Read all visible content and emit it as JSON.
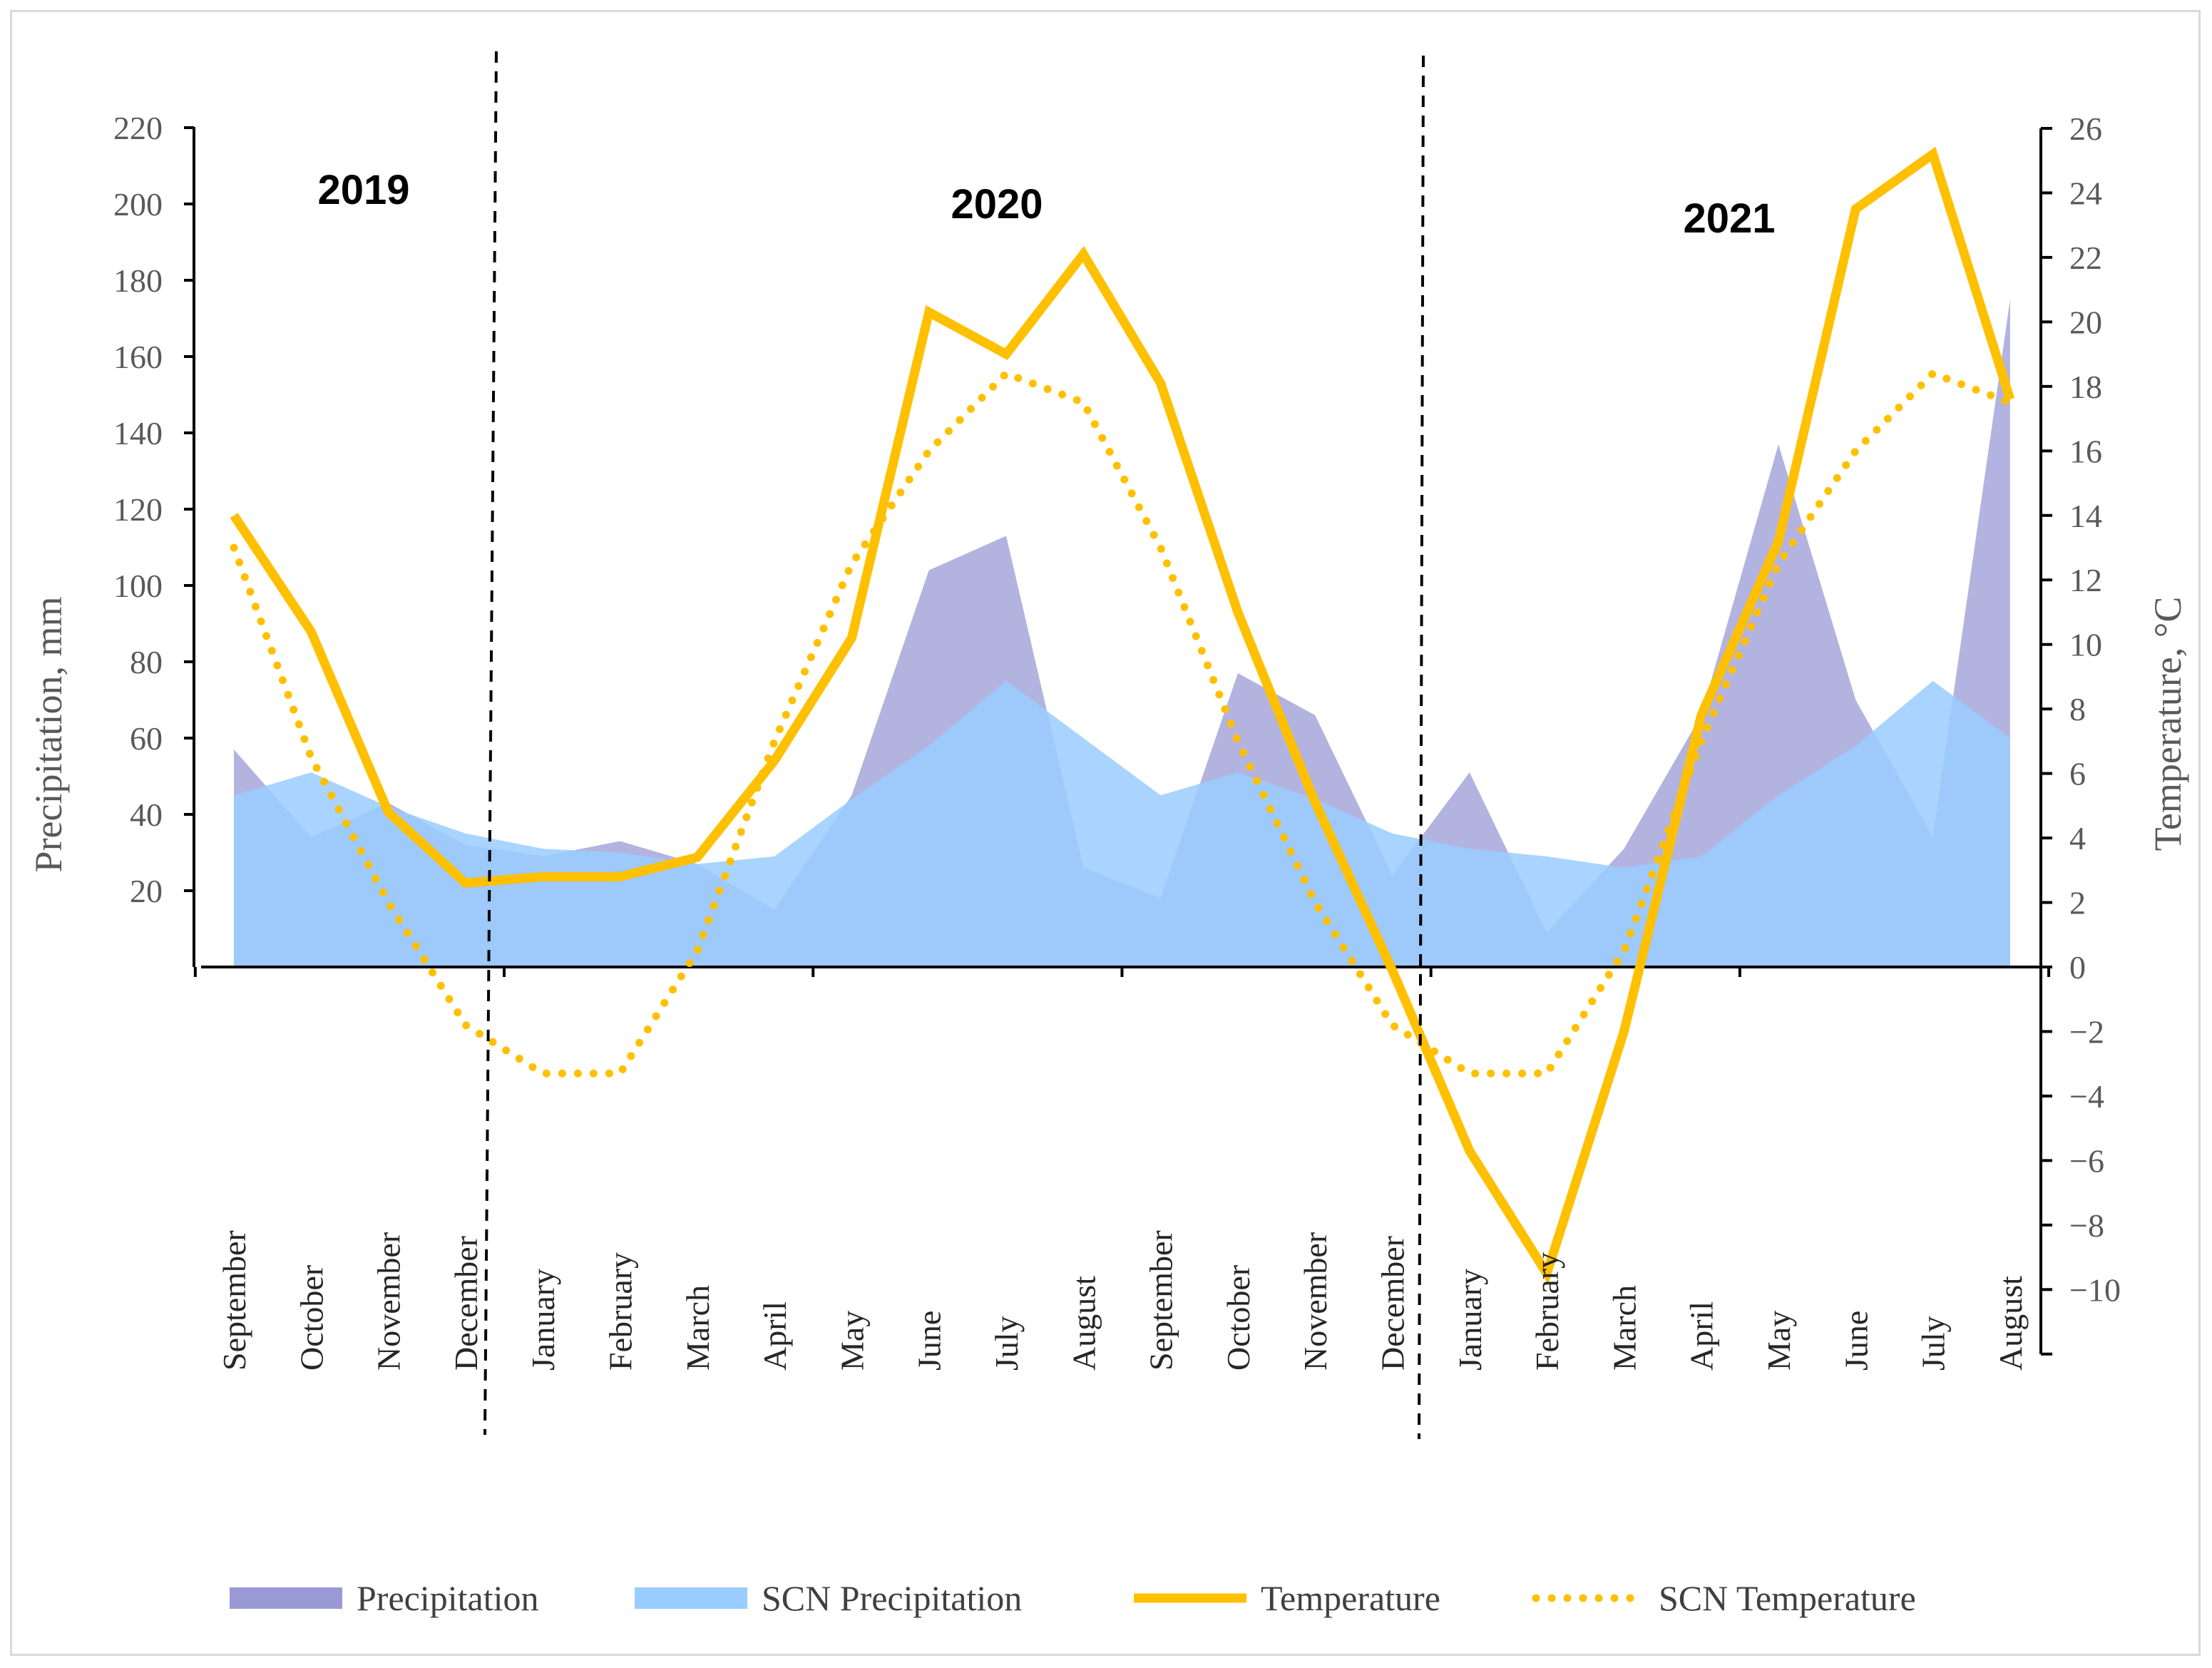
{
  "chart_data": {
    "type": "area+line",
    "title": "",
    "categories": [
      "September",
      "October",
      "November",
      "December",
      "January",
      "February",
      "March",
      "April",
      "May",
      "June",
      "July",
      "August",
      "September",
      "October",
      "November",
      "December",
      "January",
      "February",
      "March",
      "April",
      "May",
      "June",
      "July",
      "August"
    ],
    "years": [
      "2019",
      "2020",
      "2021"
    ],
    "y_left": {
      "label": "Precipitation, mm",
      "ticks": [
        20,
        40,
        60,
        80,
        100,
        120,
        140,
        160,
        180,
        200,
        220
      ],
      "range": [
        0,
        220
      ]
    },
    "y_right": {
      "label": "Temperature, °C",
      "ticks": [
        -10,
        -8,
        -6,
        -4,
        -2,
        0,
        2,
        4,
        6,
        8,
        10,
        12,
        14,
        16,
        18,
        20,
        22,
        24,
        26
      ],
      "range": [
        -12,
        26
      ]
    },
    "series": [
      {
        "name": "Precipitation",
        "type": "area",
        "axis": "left",
        "color": "#9999d6",
        "values": [
          57,
          34,
          43,
          32,
          29,
          33,
          27,
          15,
          45,
          104,
          113,
          26,
          18,
          77,
          66,
          24,
          51,
          9,
          31,
          66,
          137,
          70,
          34,
          175
        ]
      },
      {
        "name": "SCN Precipitation",
        "type": "area",
        "axis": "left",
        "color": "#99ccff",
        "values": [
          45,
          51,
          42,
          35,
          31,
          30,
          27,
          29,
          44,
          58,
          75,
          60,
          45,
          51,
          44,
          35,
          31,
          29,
          26,
          29,
          45,
          58,
          75,
          60
        ]
      },
      {
        "name": "Temperature",
        "type": "line",
        "axis": "right",
        "color": "#ffc000",
        "values": [
          14,
          10.4,
          4.8,
          2.6,
          2.8,
          2.8,
          3.4,
          6.4,
          10.2,
          20.3,
          19.0,
          22.1,
          18.1,
          11.0,
          5.1,
          -0.1,
          -5.7,
          -9.5,
          -2.0,
          7.8,
          13.2,
          23.5,
          25.2,
          17.6
        ]
      },
      {
        "name": "SCN Temperature",
        "type": "line",
        "dashed": true,
        "axis": "right",
        "color": "#ffc000",
        "values": [
          13,
          6.5,
          2,
          -1.8,
          -3.3,
          -3.3,
          0.5,
          7,
          12.5,
          16,
          18.4,
          17.5,
          13,
          7,
          2,
          -1.8,
          -3.3,
          -3.3,
          0.5,
          7,
          12.5,
          16,
          18.4,
          17.5
        ]
      }
    ],
    "legend": [
      "Precipitation",
      "SCN Precipitation",
      "Temperature",
      "SCN Temperature"
    ],
    "legend_position": "bottom"
  }
}
